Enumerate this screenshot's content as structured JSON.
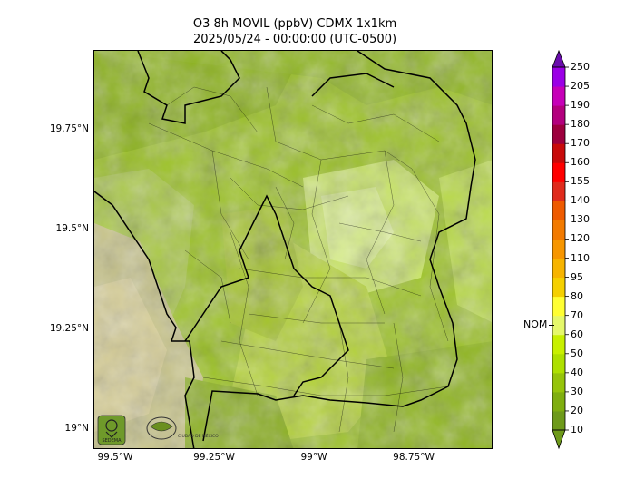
{
  "title": {
    "line1": "O3 8h MOVIL (ppbV) CDMX 1x1km",
    "line2": "2025/05/24 - 00:00:00 (UTC-0500)"
  },
  "map": {
    "lat_labels": [
      "19.75°N",
      "19.5°N",
      "19.25°N",
      "19°N"
    ],
    "lon_labels": [
      "99.5°W",
      "99.25°W",
      "99°W",
      "98.75°W"
    ],
    "logos": [
      {
        "icon": "sedema-logo",
        "text": "SEDEMA"
      },
      {
        "icon": "gobierno-cdmx-seal",
        "text": "CIUDAD DE MÉXICO"
      }
    ]
  },
  "colorbar": {
    "levels": [
      "10",
      "20",
      "30",
      "40",
      "50",
      "60",
      "70",
      "80",
      "95",
      "110",
      "120",
      "130",
      "140",
      "155",
      "160",
      "170",
      "180",
      "190",
      "205",
      "250"
    ],
    "colors": [
      "#6e9a1a",
      "#7fae0f",
      "#96c40a",
      "#aee000",
      "#c8f000",
      "#e5f86a",
      "#ffff33",
      "#f5d000",
      "#f7b400",
      "#f79600",
      "#f27a00",
      "#ee5a00",
      "#e02b1c",
      "#ff0000",
      "#c80a0a",
      "#9d003e",
      "#b3007e",
      "#c600b8",
      "#9b00e6",
      "#6a0dad"
    ],
    "nom_label": "NOM",
    "nom_value": 60
  }
}
